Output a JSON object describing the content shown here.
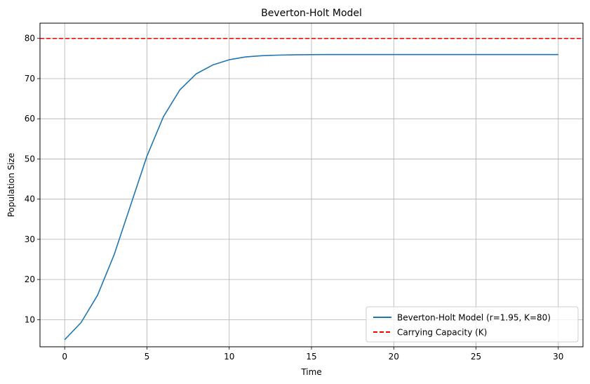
{
  "chart_data": {
    "type": "line",
    "title": "Beverton-Holt Model",
    "xlabel": "Time",
    "ylabel": "Population Size",
    "xlim": [
      -1.5,
      31.5
    ],
    "ylim": [
      3.25,
      83.8
    ],
    "x_ticks": [
      0,
      5,
      10,
      15,
      20,
      25,
      30
    ],
    "y_ticks": [
      10,
      20,
      30,
      40,
      50,
      60,
      70,
      80
    ],
    "grid": true,
    "legend_placement": "lower-right",
    "series": [
      {
        "name": "Beverton-Holt Model (r=1.95, K=80)",
        "color": "#1f77b4",
        "style": "solid",
        "x": [
          0,
          1,
          2,
          3,
          4,
          5,
          6,
          7,
          8,
          9,
          10,
          11,
          12,
          13,
          14,
          15,
          16,
          17,
          18,
          19,
          20,
          21,
          22,
          23,
          24,
          25,
          26,
          27,
          28,
          29,
          30
        ],
        "y": [
          5.0,
          9.3,
          16.1,
          26.1,
          38.4,
          50.7,
          60.5,
          67.2,
          71.2,
          73.4,
          74.7,
          75.4,
          75.7,
          75.85,
          75.93,
          75.97,
          75.99,
          76.0,
          76.0,
          76.0,
          76.0,
          76.0,
          76.0,
          76.0,
          76.0,
          76.0,
          76.0,
          76.0,
          76.0,
          76.0,
          76.0
        ]
      },
      {
        "name": "Carrying Capacity (K)",
        "color": "#ff0000",
        "style": "dashed",
        "hline": 80
      }
    ]
  }
}
